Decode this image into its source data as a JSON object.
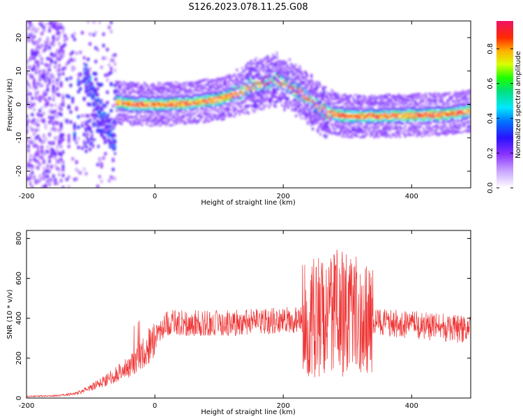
{
  "figure": {
    "title": "S126.2023.078.11.25.G08"
  },
  "chart_data": [
    {
      "type": "heatmap",
      "title": "",
      "xlabel": "Height of straight line (km)",
      "ylabel": "Frequency (Hz)",
      "xlim": [
        -200,
        492
      ],
      "ylim": [
        -25,
        25
      ],
      "xticks": [
        -200,
        0,
        200,
        400
      ],
      "yticks": [
        -20,
        -10,
        0,
        10,
        20
      ],
      "colorbar": {
        "label": "Normalized spectral amplitude",
        "range": [
          0,
          0.96
        ],
        "ticks": [
          0.0,
          0.2,
          0.4,
          0.6,
          0.8
        ]
      },
      "ridge": {
        "x": [
          -55,
          -30,
          0,
          50,
          100,
          130,
          150,
          170,
          190,
          210,
          230,
          250,
          270,
          300,
          350,
          400,
          450,
          492
        ],
        "frequency": [
          0.5,
          0,
          0,
          0.3,
          1.5,
          3.5,
          5.5,
          6.5,
          7.5,
          5.5,
          3,
          0,
          -2.5,
          -3.5,
          -3.5,
          -3.3,
          -3,
          -2
        ]
      }
    },
    {
      "type": "line",
      "title": "",
      "xlabel": "Height of straight line (km)",
      "ylabel": "SNR (10 * v/v)",
      "xlim": [
        -200,
        492
      ],
      "ylim": [
        0,
        840
      ],
      "xticks": [
        -200,
        0,
        200,
        400
      ],
      "yticks": [
        0,
        200,
        400,
        600,
        800
      ],
      "color": "#ee3333",
      "envelope": {
        "x": [
          -200,
          -150,
          -120,
          -100,
          -80,
          -60,
          -40,
          -20,
          0,
          20,
          50,
          100,
          150,
          200,
          230,
          250,
          270,
          290,
          310,
          330,
          350,
          380,
          420,
          460,
          492
        ],
        "snr": [
          8,
          12,
          25,
          50,
          85,
          120,
          160,
          220,
          300,
          380,
          375,
          375,
          380,
          390,
          390,
          400,
          420,
          420,
          410,
          390,
          380,
          370,
          360,
          350,
          340
        ]
      }
    }
  ]
}
